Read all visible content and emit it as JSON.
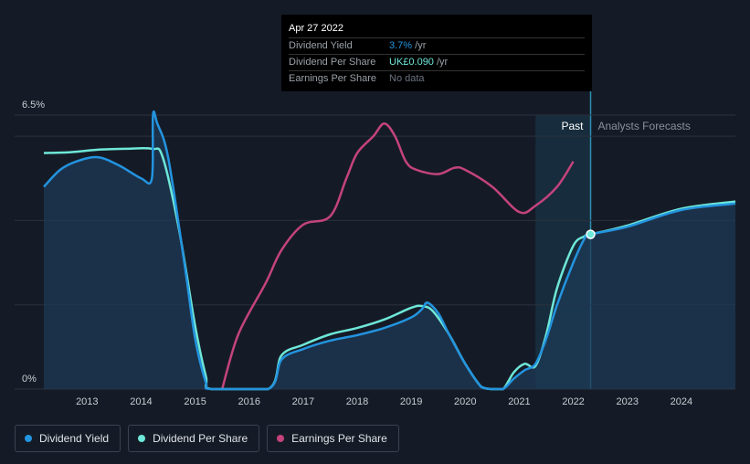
{
  "tooltip": {
    "date": "Apr 27 2022",
    "rows": [
      {
        "label": "Dividend Yield",
        "value": "3.7%",
        "unit": " /yr",
        "value_color": "#2394df"
      },
      {
        "label": "Dividend Per Share",
        "value": "UK£0.090",
        "unit": " /yr",
        "value_color": "#6ee7d8"
      },
      {
        "label": "Earnings Per Share",
        "value": "No data",
        "unit": "",
        "value_color": "#6b7280"
      }
    ]
  },
  "legend": [
    {
      "label": "Dividend Yield",
      "color": "#2394df"
    },
    {
      "label": "Dividend Per Share",
      "color": "#6ee7d8"
    },
    {
      "label": "Earnings Per Share",
      "color": "#c4437d"
    }
  ],
  "chart_data": {
    "type": "line",
    "x_range": [
      2012.2,
      2025.0
    ],
    "y_range": [
      0,
      6.5
    ],
    "y_tick_labels": [
      {
        "value": 6.5,
        "label": "6.5%"
      },
      {
        "value": 0,
        "label": "0%"
      }
    ],
    "x_ticks": [
      2013,
      2014,
      2015,
      2016,
      2017,
      2018,
      2019,
      2020,
      2021,
      2022,
      2023,
      2024
    ],
    "past_label": "Past",
    "forecast_label": "Analysts Forecasts",
    "past_band": [
      2021.3,
      2022.32
    ],
    "marker": {
      "x": 2022.32,
      "y": 3.67
    },
    "series": [
      {
        "name": "Dividend Yield",
        "color": "#2394df",
        "fill": true,
        "points": [
          [
            2012.2,
            4.8
          ],
          [
            2012.5,
            5.2
          ],
          [
            2012.8,
            5.4
          ],
          [
            2013.2,
            5.5
          ],
          [
            2013.6,
            5.3
          ],
          [
            2014.0,
            5.0
          ],
          [
            2014.2,
            5.0
          ],
          [
            2014.22,
            6.5
          ],
          [
            2014.3,
            6.3
          ],
          [
            2014.5,
            5.5
          ],
          [
            2014.8,
            3.0
          ],
          [
            2015.0,
            1.2
          ],
          [
            2015.2,
            0.15
          ],
          [
            2015.3,
            0.0
          ],
          [
            2016.35,
            0.0
          ],
          [
            2016.6,
            0.7
          ],
          [
            2017.0,
            0.95
          ],
          [
            2017.5,
            1.15
          ],
          [
            2018.0,
            1.28
          ],
          [
            2018.5,
            1.45
          ],
          [
            2019.0,
            1.7
          ],
          [
            2019.2,
            1.9
          ],
          [
            2019.3,
            2.05
          ],
          [
            2019.5,
            1.8
          ],
          [
            2019.7,
            1.3
          ],
          [
            2020.0,
            0.6
          ],
          [
            2020.3,
            0.05
          ],
          [
            2020.5,
            0.0
          ],
          [
            2020.7,
            0.0
          ],
          [
            2020.9,
            0.25
          ],
          [
            2021.1,
            0.45
          ],
          [
            2021.3,
            0.6
          ],
          [
            2021.5,
            1.2
          ],
          [
            2021.7,
            2.0
          ],
          [
            2022.0,
            3.0
          ],
          [
            2022.2,
            3.55
          ],
          [
            2022.32,
            3.67
          ],
          [
            2023.0,
            3.85
          ],
          [
            2024.0,
            4.25
          ],
          [
            2025.0,
            4.4
          ]
        ]
      },
      {
        "name": "Dividend Per Share",
        "color": "#6ee7d8",
        "fill": false,
        "points": [
          [
            2012.2,
            5.6
          ],
          [
            2012.7,
            5.62
          ],
          [
            2013.2,
            5.68
          ],
          [
            2013.7,
            5.7
          ],
          [
            2014.2,
            5.7
          ],
          [
            2014.4,
            5.5
          ],
          [
            2014.7,
            3.8
          ],
          [
            2015.0,
            1.5
          ],
          [
            2015.2,
            0.3
          ],
          [
            2015.3,
            0.0
          ],
          [
            2016.35,
            0.0
          ],
          [
            2016.6,
            0.8
          ],
          [
            2017.0,
            1.05
          ],
          [
            2017.5,
            1.3
          ],
          [
            2018.0,
            1.45
          ],
          [
            2018.5,
            1.65
          ],
          [
            2019.0,
            1.93
          ],
          [
            2019.2,
            1.97
          ],
          [
            2019.4,
            1.85
          ],
          [
            2019.7,
            1.3
          ],
          [
            2020.0,
            0.6
          ],
          [
            2020.3,
            0.05
          ],
          [
            2020.5,
            0.0
          ],
          [
            2020.7,
            0.0
          ],
          [
            2020.9,
            0.4
          ],
          [
            2021.1,
            0.6
          ],
          [
            2021.3,
            0.55
          ],
          [
            2021.5,
            1.3
          ],
          [
            2021.7,
            2.4
          ],
          [
            2022.0,
            3.4
          ],
          [
            2022.2,
            3.62
          ],
          [
            2022.32,
            3.67
          ],
          [
            2023.0,
            3.88
          ],
          [
            2024.0,
            4.28
          ],
          [
            2025.0,
            4.45
          ]
        ]
      },
      {
        "name": "Earnings Per Share",
        "color": "#c4437d",
        "fill": false,
        "points": [
          [
            2015.5,
            0.0
          ],
          [
            2015.8,
            1.3
          ],
          [
            2016.3,
            2.5
          ],
          [
            2016.6,
            3.3
          ],
          [
            2017.0,
            3.9
          ],
          [
            2017.5,
            4.1
          ],
          [
            2017.8,
            5.0
          ],
          [
            2018.0,
            5.6
          ],
          [
            2018.3,
            6.0
          ],
          [
            2018.5,
            6.3
          ],
          [
            2018.7,
            6.0
          ],
          [
            2018.9,
            5.4
          ],
          [
            2019.1,
            5.2
          ],
          [
            2019.5,
            5.1
          ],
          [
            2019.8,
            5.25
          ],
          [
            2020.0,
            5.2
          ],
          [
            2020.5,
            4.8
          ],
          [
            2021.0,
            4.2
          ],
          [
            2021.3,
            4.35
          ],
          [
            2021.7,
            4.8
          ],
          [
            2022.0,
            5.4
          ]
        ]
      }
    ]
  }
}
